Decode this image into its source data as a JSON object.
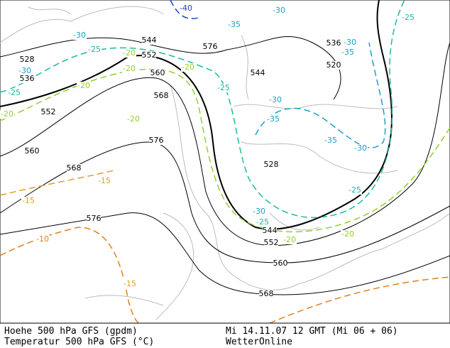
{
  "footer": {
    "left": [
      "Hoehe 500 hPa GFS (gpdm)",
      "Temperatur 500 hPa GFS (°C)"
    ],
    "right": [
      "Mi 14.11.07 12 GMT (Mi 06 + 06)",
      "WetterOnline"
    ]
  },
  "map": {
    "height_labels": [
      "544",
      "552",
      "528",
      "536",
      "552",
      "560",
      "568",
      "576",
      "560",
      "568",
      "576",
      "544",
      "536",
      "520",
      "528",
      "544",
      "552",
      "560",
      "568",
      "576"
    ],
    "temperature_labels": [
      {
        "label": "-40",
        "color": "#2040c0"
      },
      {
        "label": "-30",
        "color": "#1aa0c8"
      },
      {
        "label": "-25",
        "color": "#20b8a0"
      },
      {
        "label": "-30",
        "color": "#1aa0c8"
      },
      {
        "label": "-35",
        "color": "#1aa0c8"
      },
      {
        "label": "-25",
        "color": "#20b8a0"
      },
      {
        "label": "-20",
        "color": "#90d030"
      },
      {
        "label": "-20",
        "color": "#90d030"
      },
      {
        "label": "-25",
        "color": "#20b8a0"
      },
      {
        "label": "-30",
        "color": "#1aa0c8"
      },
      {
        "label": "-20",
        "color": "#90d030"
      },
      {
        "label": "-20",
        "color": "#90d030"
      },
      {
        "label": "-20",
        "color": "#90d030"
      },
      {
        "label": "-20",
        "color": "#90d030"
      },
      {
        "label": "-25",
        "color": "#20b8a0"
      },
      {
        "label": "-30",
        "color": "#1aa0c8"
      },
      {
        "label": "-35",
        "color": "#1aa0c8"
      },
      {
        "label": "-35",
        "color": "#1aa0c8"
      },
      {
        "label": "-30",
        "color": "#1aa0c8"
      },
      {
        "label": "-25",
        "color": "#20b8a0"
      },
      {
        "label": "-15",
        "color": "#e0a020"
      },
      {
        "label": "-15",
        "color": "#e0a020"
      },
      {
        "label": "-10",
        "color": "#e08020"
      },
      {
        "label": "-15",
        "color": "#e0a020"
      },
      {
        "label": "-30",
        "color": "#1aa0c8"
      },
      {
        "label": "-25",
        "color": "#20b8a0"
      },
      {
        "label": "-20",
        "color": "#90d030"
      },
      {
        "label": "-20",
        "color": "#90d030"
      },
      {
        "label": "-30",
        "color": "#1aa0c8"
      },
      {
        "label": "-35",
        "color": "#1aa0c8"
      }
    ]
  }
}
